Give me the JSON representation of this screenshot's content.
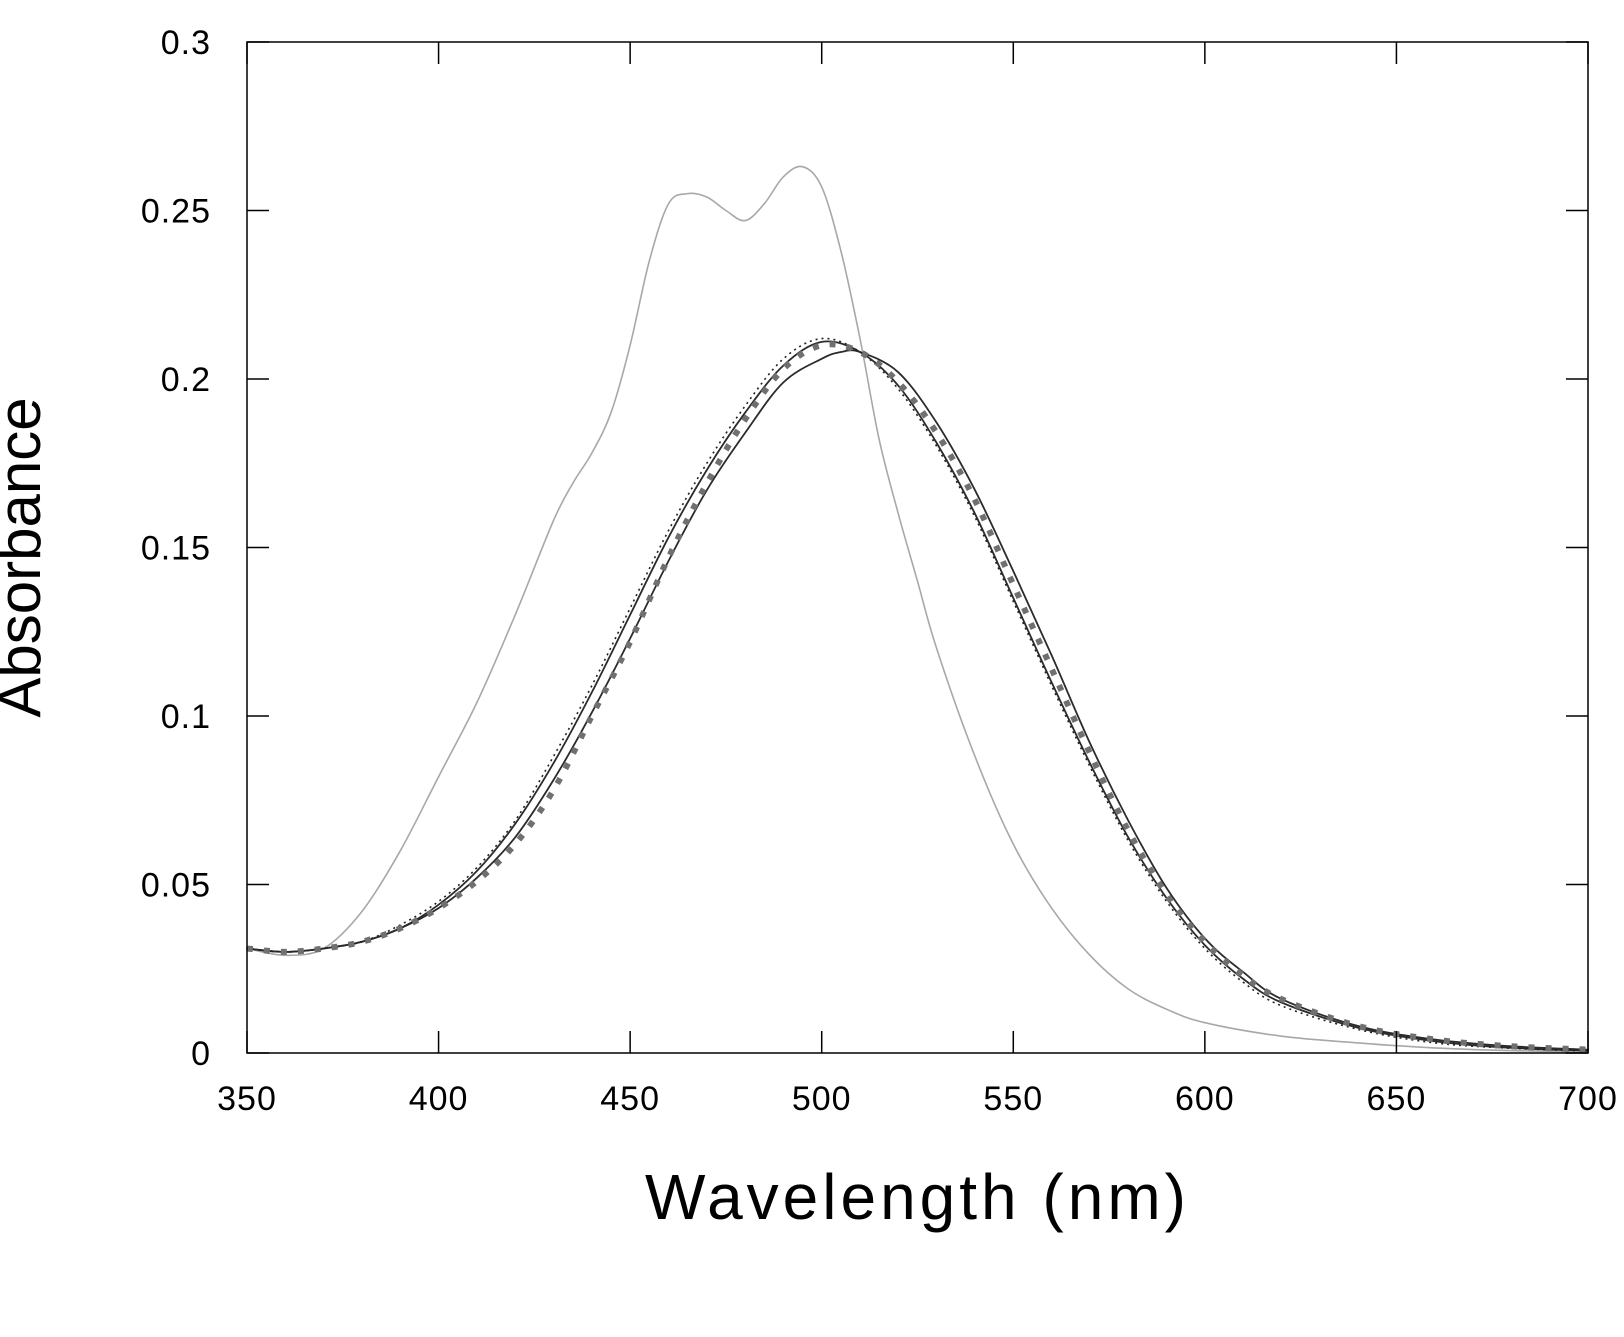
{
  "chart_data": {
    "type": "line",
    "title": "",
    "xlabel": "Wavelength (nm)",
    "ylabel": "Absorbance",
    "xlim": [
      350,
      700
    ],
    "ylim": [
      0,
      0.3
    ],
    "x_ticks": [
      350,
      400,
      450,
      500,
      550,
      600,
      650,
      700
    ],
    "y_ticks": [
      0,
      0.05,
      0.1,
      0.15,
      0.2,
      0.25,
      0.3
    ],
    "x_tick_labels": [
      "350",
      "400",
      "450",
      "500",
      "550",
      "600",
      "650",
      "700"
    ],
    "y_tick_labels": [
      "0",
      "0.05",
      "0.1",
      "0.15",
      "0.2",
      "0.25",
      "0.3"
    ],
    "grid": false,
    "legend": "none",
    "series": [
      {
        "style": "solid-gray-thin",
        "color": "#a8a8a8",
        "x": [
          350,
          360,
          370,
          380,
          390,
          400,
          410,
          420,
          430,
          435,
          440,
          445,
          450,
          455,
          460,
          465,
          470,
          475,
          480,
          485,
          490,
          495,
          500,
          505,
          510,
          515,
          520,
          525,
          530,
          540,
          550,
          560,
          570,
          580,
          590,
          600,
          620,
          640,
          660,
          680,
          700
        ],
        "y": [
          0.031,
          0.029,
          0.031,
          0.042,
          0.06,
          0.082,
          0.104,
          0.13,
          0.158,
          0.169,
          0.178,
          0.19,
          0.21,
          0.235,
          0.252,
          0.255,
          0.254,
          0.25,
          0.247,
          0.252,
          0.26,
          0.263,
          0.257,
          0.238,
          0.212,
          0.182,
          0.16,
          0.14,
          0.12,
          0.088,
          0.062,
          0.043,
          0.029,
          0.019,
          0.013,
          0.009,
          0.005,
          0.003,
          0.0015,
          0.0007,
          0.0003
        ]
      },
      {
        "style": "solid-black",
        "color": "#2b2b2b",
        "x": [
          350,
          360,
          370,
          380,
          390,
          400,
          410,
          420,
          430,
          440,
          450,
          460,
          470,
          480,
          490,
          500,
          505,
          510,
          520,
          530,
          540,
          550,
          560,
          570,
          580,
          590,
          600,
          610,
          620,
          640,
          660,
          680,
          700
        ],
        "y": [
          0.031,
          0.03,
          0.031,
          0.033,
          0.037,
          0.043,
          0.052,
          0.064,
          0.081,
          0.101,
          0.123,
          0.146,
          0.167,
          0.184,
          0.199,
          0.206,
          0.208,
          0.208,
          0.202,
          0.187,
          0.167,
          0.143,
          0.118,
          0.092,
          0.069,
          0.049,
          0.034,
          0.024,
          0.016,
          0.008,
          0.004,
          0.002,
          0.001
        ]
      },
      {
        "style": "solid-black",
        "color": "#2b2b2b",
        "x": [
          350,
          360,
          370,
          380,
          390,
          400,
          410,
          420,
          430,
          440,
          450,
          460,
          470,
          480,
          490,
          500,
          510,
          520,
          530,
          540,
          550,
          560,
          570,
          580,
          590,
          600,
          610,
          620,
          640,
          660,
          680,
          700
        ],
        "y": [
          0.031,
          0.03,
          0.031,
          0.033,
          0.037,
          0.044,
          0.054,
          0.068,
          0.086,
          0.107,
          0.13,
          0.153,
          0.173,
          0.19,
          0.204,
          0.211,
          0.208,
          0.198,
          0.181,
          0.16,
          0.135,
          0.11,
          0.086,
          0.064,
          0.046,
          0.032,
          0.022,
          0.015,
          0.0075,
          0.0035,
          0.0015,
          0.0007
        ]
      },
      {
        "style": "dotted-black",
        "color": "#222222",
        "x": [
          350,
          360,
          370,
          380,
          390,
          400,
          410,
          420,
          430,
          440,
          450,
          460,
          470,
          480,
          490,
          500,
          510,
          520,
          530,
          540,
          550,
          560,
          570,
          580,
          590,
          600,
          610,
          620,
          640,
          660,
          680,
          700
        ],
        "y": [
          0.031,
          0.03,
          0.031,
          0.033,
          0.038,
          0.045,
          0.055,
          0.069,
          0.088,
          0.109,
          0.132,
          0.155,
          0.175,
          0.192,
          0.206,
          0.212,
          0.208,
          0.197,
          0.18,
          0.159,
          0.134,
          0.109,
          0.085,
          0.063,
          0.045,
          0.031,
          0.021,
          0.014,
          0.007,
          0.003,
          0.0014,
          0.0006
        ]
      },
      {
        "style": "dashed-gray-thick",
        "color": "#707070",
        "x": [
          350,
          360,
          370,
          380,
          390,
          400,
          410,
          420,
          430,
          440,
          450,
          460,
          470,
          480,
          490,
          500,
          510,
          520,
          530,
          540,
          550,
          560,
          570,
          580,
          590,
          600,
          610,
          620,
          640,
          660,
          680,
          700
        ],
        "y": [
          0.031,
          0.03,
          0.031,
          0.033,
          0.037,
          0.043,
          0.051,
          0.062,
          0.078,
          0.1,
          0.122,
          0.147,
          0.169,
          0.188,
          0.203,
          0.21,
          0.208,
          0.199,
          0.184,
          0.164,
          0.139,
          0.114,
          0.089,
          0.066,
          0.047,
          0.033,
          0.023,
          0.016,
          0.008,
          0.004,
          0.002,
          0.001
        ]
      }
    ]
  }
}
